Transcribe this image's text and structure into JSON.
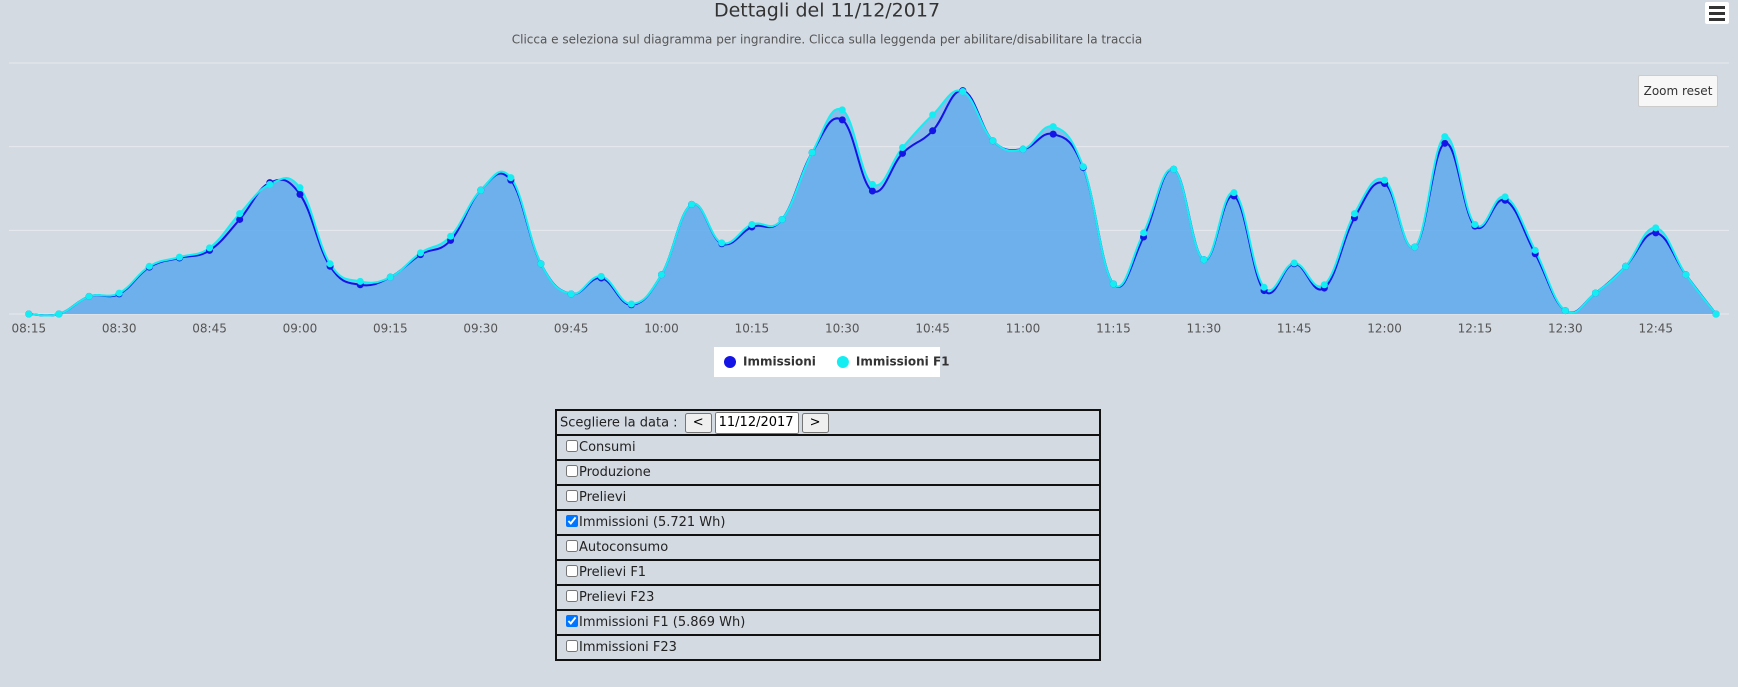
{
  "chart_data": {
    "type": "area",
    "title": "Dettagli del 11/12/2017",
    "subtitle": "Clicca e seleziona sul diagramma per ingrandire. Clicca sulla leggenda per abilitare/disabilitare la traccia",
    "categories": [
      "08:15",
      null,
      null,
      "08:30",
      null,
      null,
      "08:45",
      null,
      null,
      "09:00",
      null,
      null,
      "09:15",
      null,
      null,
      "09:30",
      null,
      null,
      "09:45",
      null,
      null,
      "10:00",
      null,
      null,
      "10:15",
      null,
      null,
      "10:30",
      null,
      null,
      "10:45",
      null,
      null,
      "11:00",
      null,
      null,
      "11:15",
      null,
      null,
      "11:30",
      null,
      null,
      "11:45",
      null,
      null,
      "12:00",
      null,
      null,
      "12:15",
      null,
      null,
      "12:30",
      null,
      null,
      "12:45",
      null,
      null
    ],
    "series": [
      {
        "name": "Immissioni",
        "color": "#1414e6",
        "values": [
          0,
          0,
          21,
          24,
          56,
          67,
          76,
          113,
          157,
          143,
          57,
          35,
          44,
          71,
          88,
          148,
          160,
          60,
          24,
          43,
          11,
          47,
          131,
          84,
          104,
          113,
          193,
          232,
          147,
          192,
          219,
          267,
          207,
          197,
          215,
          175,
          36,
          92,
          173,
          65,
          141,
          28,
          60,
          31,
          115,
          156,
          80,
          204,
          105,
          136,
          72,
          4,
          25,
          57,
          97,
          47,
          0
        ]
      },
      {
        "name": "Immissioni F1",
        "color": "#14eef2",
        "values": [
          0,
          0,
          21,
          25,
          57,
          68,
          79,
          120,
          155,
          151,
          60,
          39,
          44,
          73,
          93,
          148,
          163,
          60,
          24,
          45,
          12,
          47,
          131,
          85,
          107,
          113,
          193,
          244,
          155,
          199,
          238,
          266,
          207,
          197,
          224,
          176,
          36,
          97,
          173,
          65,
          145,
          32,
          61,
          35,
          120,
          160,
          80,
          212,
          107,
          140,
          76,
          4,
          25,
          57,
          103,
          47,
          0
        ]
      }
    ],
    "ylim": [
      0,
      300
    ],
    "yticks": [
      0,
      100,
      200,
      300
    ],
    "grid": true,
    "area": true,
    "legend": "bottom"
  },
  "toolbar": {
    "zoom_reset": "Zoom reset"
  },
  "form": {
    "date_label": "Scegliere la data :",
    "prev": "<",
    "date": "11/12/2017",
    "next": ">",
    "options": [
      {
        "label": "Consumi",
        "checked": false
      },
      {
        "label": "Produzione",
        "checked": false
      },
      {
        "label": "Prelievi",
        "checked": false
      },
      {
        "label": "Immissioni (5.721 Wh)",
        "checked": true
      },
      {
        "label": "Autoconsumo",
        "checked": false
      },
      {
        "label": "Prelievi F1",
        "checked": false
      },
      {
        "label": "Prelievi F23",
        "checked": false
      },
      {
        "label": "Immissioni F1 (5.869 Wh)",
        "checked": true
      },
      {
        "label": "Immissioni F23",
        "checked": false
      }
    ]
  }
}
